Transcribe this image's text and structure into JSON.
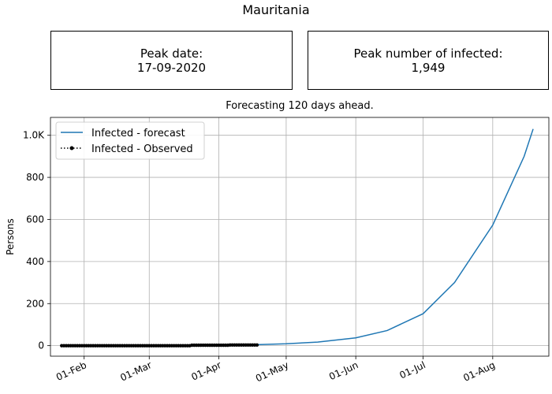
{
  "figure": {
    "title": "Mauritania"
  },
  "boxes": {
    "peak_date_label": "Peak date:",
    "peak_date_value": "17-09-2020",
    "peak_number_label": "Peak number of infected:",
    "peak_number_value": "1,949"
  },
  "chart_data": {
    "type": "line",
    "title": "Forecasting 120 days ahead.",
    "xlabel": "",
    "ylabel": "Persons",
    "x_type": "date",
    "xlim": [
      "2020-01-17",
      "2020-08-26"
    ],
    "ylim": [
      -50,
      1085
    ],
    "grid": true,
    "legend_position": "top-left",
    "x_ticks": [
      {
        "date": "2020-02-01",
        "label": "01-Feb"
      },
      {
        "date": "2020-03-01",
        "label": "01-Mar"
      },
      {
        "date": "2020-04-01",
        "label": "01-Apr"
      },
      {
        "date": "2020-05-01",
        "label": "01-May"
      },
      {
        "date": "2020-06-01",
        "label": "01-Jun"
      },
      {
        "date": "2020-07-01",
        "label": "01-Jul"
      },
      {
        "date": "2020-08-01",
        "label": "01-Aug"
      }
    ],
    "y_ticks": [
      {
        "value": 0,
        "label": "0"
      },
      {
        "value": 200,
        "label": "200"
      },
      {
        "value": 400,
        "label": "400"
      },
      {
        "value": 600,
        "label": "600"
      },
      {
        "value": 800,
        "label": "800"
      },
      {
        "value": 1000,
        "label": "1.0K"
      }
    ],
    "series": [
      {
        "name": "Infected - forecast",
        "color": "#1f77b4",
        "style": "solid",
        "points": [
          {
            "date": "2020-03-27",
            "value": 3
          },
          {
            "date": "2020-04-18",
            "value": 5
          },
          {
            "date": "2020-05-01",
            "value": 9
          },
          {
            "date": "2020-05-15",
            "value": 17
          },
          {
            "date": "2020-06-01",
            "value": 37
          },
          {
            "date": "2020-06-15",
            "value": 72
          },
          {
            "date": "2020-07-01",
            "value": 152
          },
          {
            "date": "2020-07-15",
            "value": 300
          },
          {
            "date": "2020-08-01",
            "value": 573
          },
          {
            "date": "2020-08-15",
            "value": 900
          },
          {
            "date": "2020-08-19",
            "value": 1030
          }
        ]
      },
      {
        "name": "Infected - Observed",
        "color": "#000000",
        "style": "dotted-markers",
        "start_date": "2020-01-22",
        "values": [
          0,
          0,
          0,
          0,
          0,
          0,
          0,
          0,
          0,
          0,
          0,
          0,
          0,
          0,
          0,
          0,
          0,
          0,
          0,
          0,
          0,
          0,
          0,
          0,
          0,
          0,
          0,
          0,
          0,
          0,
          0,
          0,
          0,
          0,
          0,
          0,
          0,
          0,
          0,
          0,
          0,
          0,
          0,
          0,
          0,
          0,
          0,
          0,
          0,
          0,
          0,
          0,
          0,
          0,
          0,
          0,
          0,
          0,
          2,
          2,
          2,
          2,
          2,
          2,
          2,
          2,
          2,
          2,
          2,
          2,
          2,
          2,
          2,
          2,
          2,
          3,
          3,
          3,
          3,
          3,
          3,
          3,
          3,
          3,
          3,
          3,
          3,
          3
        ]
      }
    ]
  }
}
